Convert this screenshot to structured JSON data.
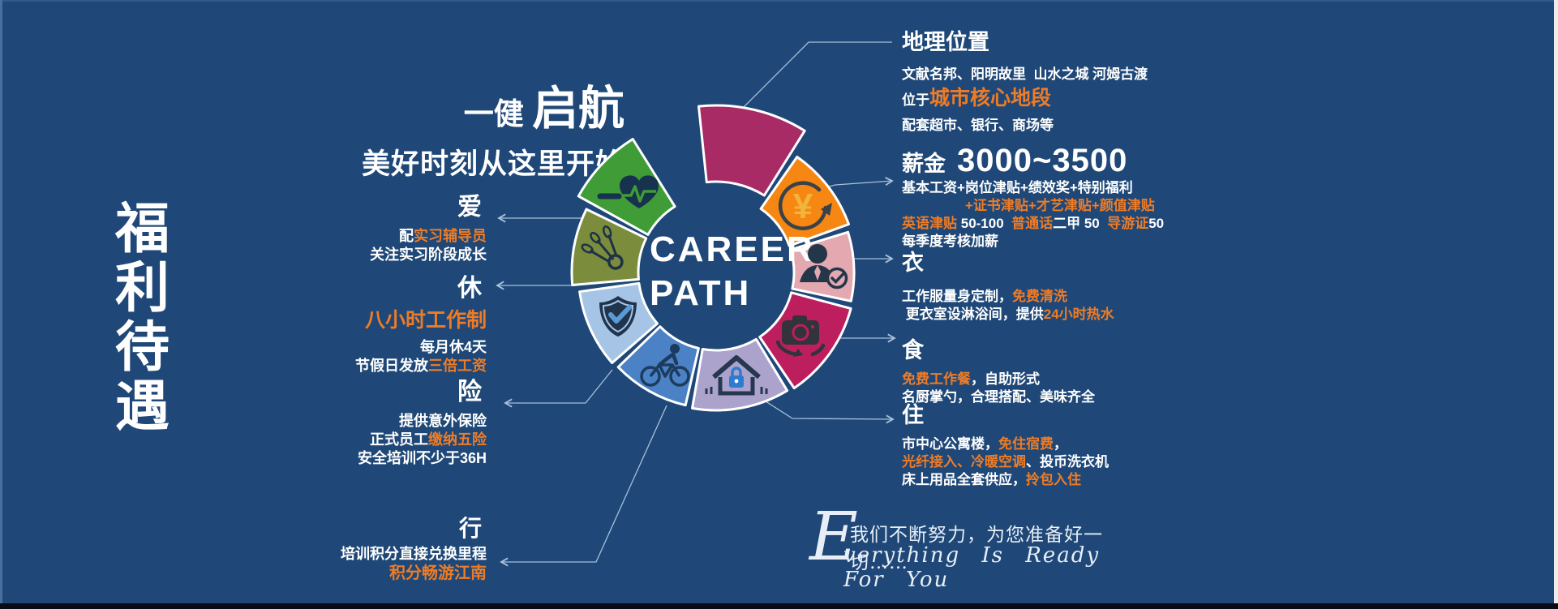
{
  "colors": {
    "background": "#1F4878",
    "accent_orange": "#EE7C26",
    "white": "#FFFFFF",
    "connector": "#A8C0DC"
  },
  "banner": {
    "title": "福利待遇"
  },
  "headline": {
    "small": "一健 ",
    "big": "启航",
    "sub": "美好时刻从这里开始"
  },
  "wheel": {
    "center_line1": "CAREER",
    "center_line2": "PATH",
    "segments": [
      {
        "name": "start",
        "color": "#A92B66",
        "icon": "none"
      },
      {
        "name": "salary",
        "color": "#F58712",
        "icon": "yuan-refresh-icon"
      },
      {
        "name": "clothing",
        "color": "#E3A8B0",
        "icon": "person-check-icon"
      },
      {
        "name": "food",
        "color": "#BC1E5E",
        "icon": "camera-sync-icon"
      },
      {
        "name": "housing",
        "color": "#ACA3CD",
        "icon": "house-lock-icon"
      },
      {
        "name": "travel",
        "color": "#4B82C6",
        "icon": "cyclist-icon"
      },
      {
        "name": "insurance",
        "color": "#A6C4E5",
        "icon": "shield-check-icon"
      },
      {
        "name": "rest",
        "color": "#7C8C3D",
        "icon": "shuttlecock-icon"
      },
      {
        "name": "love",
        "color": "#3F9C36",
        "icon": "heart-pulse-icon"
      }
    ],
    "yuan_symbol": "¥"
  },
  "sections": {
    "location": {
      "title": "地理位置",
      "l1": [
        {
          "t": "文献名邦、阳明故里  山水之城 河姆古渡"
        }
      ],
      "l2": [
        {
          "t": "位于"
        },
        {
          "t": "城市核心地段",
          "accent": true,
          "big": true
        }
      ],
      "l3": [
        {
          "t": "配套超市、银行、商场等"
        }
      ]
    },
    "salary": {
      "title": "薪金",
      "amount": "3000~3500",
      "l1": [
        {
          "t": "基本工资+岗位津贴+绩效奖+特别福利"
        }
      ],
      "l2": [
        {
          "t": "+证书津贴+才艺津贴+颜值津贴",
          "accent": true
        }
      ],
      "l3": [
        {
          "t": "英语津贴 ",
          "accent": true
        },
        {
          "t": "50-100  "
        },
        {
          "t": "普通话",
          "accent": true
        },
        {
          "t": "二甲 50  "
        },
        {
          "t": "导游证",
          "accent": true
        },
        {
          "t": "50"
        }
      ],
      "l4": [
        {
          "t": "每季度考核加薪"
        }
      ]
    },
    "clothing": {
      "title": "衣",
      "l1": [
        {
          "t": "工作服量身定制，"
        },
        {
          "t": "免费清洗",
          "accent": true
        }
      ],
      "l2": [
        {
          "t": " 更衣室设淋浴间，提供"
        },
        {
          "t": "24小时热水",
          "accent": true
        }
      ]
    },
    "food": {
      "title": "食",
      "l1": [
        {
          "t": "免费工作餐",
          "accent": true
        },
        {
          "t": "，自助形式"
        }
      ],
      "l2": [
        {
          "t": "名厨掌勺，合理搭配、美味齐全"
        }
      ]
    },
    "housing": {
      "title": "住",
      "l1": [
        {
          "t": "市中心公寓楼，"
        },
        {
          "t": "免住宿费",
          "accent": true
        },
        {
          "t": "，"
        }
      ],
      "l2": [
        {
          "t": "光纤接入、冷暖空调",
          "accent": true
        },
        {
          "t": "、投币洗衣机"
        }
      ],
      "l3": [
        {
          "t": "床上用品全套供应，"
        },
        {
          "t": "拎包入住",
          "accent": true
        }
      ]
    },
    "love": {
      "title": "爱",
      "l1": [
        {
          "t": "配"
        },
        {
          "t": "实习辅导员",
          "accent": true
        }
      ],
      "l2": [
        {
          "t": "关注实习阶段成长"
        }
      ]
    },
    "rest": {
      "title": "休",
      "big": [
        {
          "t": "八小时工作制",
          "accent": true
        }
      ],
      "l1": [
        {
          "t": "每月休4天"
        }
      ],
      "l2": [
        {
          "t": "节假日发放"
        },
        {
          "t": "三倍工资",
          "accent": true
        }
      ]
    },
    "insurance": {
      "title": "险",
      "l1": [
        {
          "t": "提供意外保险"
        }
      ],
      "l2": [
        {
          "t": "正式员工"
        },
        {
          "t": "缴纳五险",
          "accent": true
        }
      ],
      "l3": [
        {
          "t": "安全培训不少于36H"
        }
      ]
    },
    "travel": {
      "title": "行",
      "l1": [
        {
          "t": "培训积分直接兑换里程"
        }
      ],
      "l2": [
        {
          "t": "积分畅游江南",
          "accent": true
        }
      ]
    }
  },
  "footer": {
    "initial": "E",
    "cn": "我们不断努力，为您准备好一切……",
    "en": "verything Is Ready For You"
  }
}
